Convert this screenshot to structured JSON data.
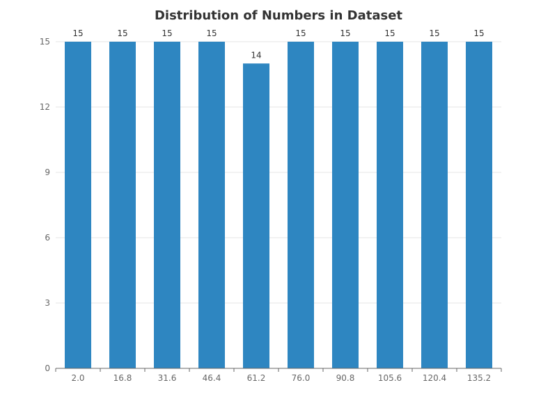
{
  "chart_data": {
    "type": "bar",
    "title": "Distribution of Numbers in Dataset",
    "xlabel": "",
    "ylabel": "",
    "categories": [
      "2.0",
      "16.8",
      "31.6",
      "46.4",
      "61.2",
      "76.0",
      "90.8",
      "105.6",
      "120.4",
      "135.2"
    ],
    "values": [
      15,
      15,
      15,
      15,
      14,
      15,
      15,
      15,
      15,
      15
    ],
    "ylim": [
      0,
      15
    ],
    "yticks": [
      "0",
      "3",
      "6",
      "9",
      "12",
      "15"
    ],
    "grid": true,
    "legend": "none",
    "bar_color": "#2e86c1",
    "grid_color": "#e6e6e6",
    "axis_color": "#666666"
  }
}
